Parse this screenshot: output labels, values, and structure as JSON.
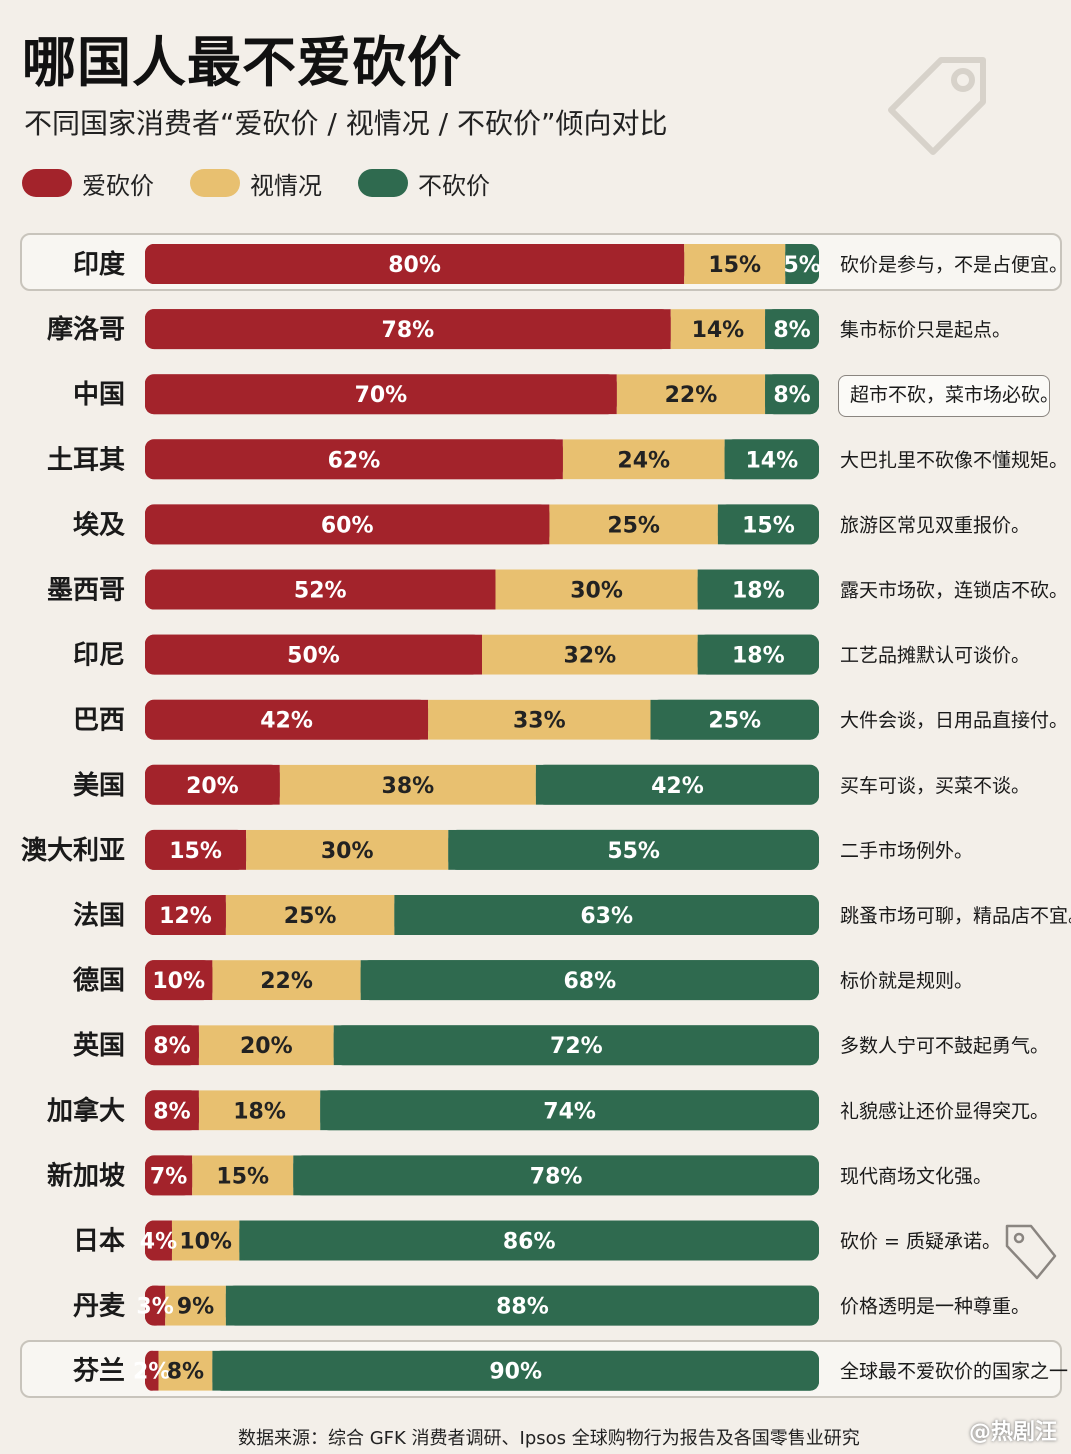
{
  "header": {
    "title": "哪国人最不爱砍价",
    "subtitle": "不同国家消费者“爱砍价 / 视情况 / 不砍价”倾向对比"
  },
  "colors": {
    "bargain": "#a3232b",
    "depends": "#e8c070",
    "no_bargain": "#2f6a4f",
    "background": "#f3efe9"
  },
  "chart_data": {
    "type": "bar",
    "orientation": "horizontal-stacked-percent",
    "categories": [
      "印度",
      "摩洛哥",
      "中国",
      "土耳其",
      "埃及",
      "墨西哥",
      "印尼",
      "巴西",
      "美国",
      "澳大利亚",
      "法国",
      "德国",
      "英国",
      "加拿大",
      "新加坡",
      "日本",
      "丹麦",
      "芬兰"
    ],
    "series": [
      {
        "name": "爱砍价",
        "values": [
          80,
          78,
          70,
          62,
          60,
          52,
          50,
          42,
          20,
          15,
          12,
          10,
          8,
          8,
          7,
          4,
          3,
          2
        ]
      },
      {
        "name": "视情况",
        "values": [
          15,
          14,
          22,
          24,
          25,
          30,
          32,
          33,
          38,
          30,
          25,
          22,
          20,
          18,
          15,
          10,
          9,
          8
        ]
      },
      {
        "name": "不砍价",
        "values": [
          5,
          8,
          8,
          14,
          15,
          18,
          18,
          25,
          42,
          55,
          63,
          68,
          72,
          74,
          78,
          86,
          88,
          90
        ]
      }
    ],
    "notes": [
      "砍价是参与，不是占便宜。",
      "集市标价只是起点。",
      "超市不砍，菜市场必砍。",
      "大巴扎里不砍像不懂规矩。",
      "旅游区常见双重报价。",
      "露天市场砍，连锁店不砍。",
      "工艺品摊默认可谈价。",
      "大件会谈，日用品直接付。",
      "买车可谈，买菜不谈。",
      "二手市场例外。",
      "跳蚤市场可聊，精品店不宜。",
      "标价就是规则。",
      "多数人宁可不鼓起勇气。",
      "礼貌感让还价显得突兀。",
      "现代商场文化强。",
      "砍价 = 质疑承诺。",
      "价格透明是一种尊重。",
      "全球最不爱砍价的国家之一"
    ],
    "highlighted": [
      "印度",
      "芬兰"
    ],
    "callout": "中国",
    "legend": "top-left"
  },
  "footer": {
    "source": "数据来源：综合 GFK 消费者调研、Ipsos 全球购物行为报告及各国零售业研究",
    "watermark": "@热剧汪"
  },
  "icons": [
    "price-tag-icon",
    "price-tag-icon-small"
  ]
}
